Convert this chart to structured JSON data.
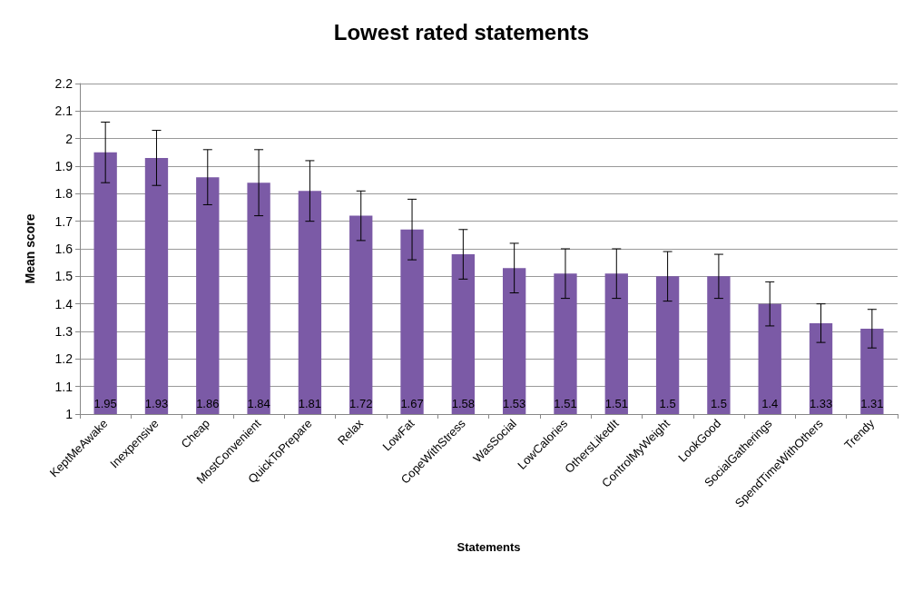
{
  "chart_data": {
    "type": "bar",
    "title": "Lowest rated statements",
    "xlabel": "Statements",
    "ylabel": "Mean score",
    "categories": [
      "KeptMeAwake",
      "Inexpensive",
      "Cheap",
      "MostConvenient",
      "QuickToPrepare",
      "Relax",
      "LowFat",
      "CopeWithStress",
      "WasSocial",
      "LowCalories",
      "OthersLikedIt",
      "ControlMyWeight",
      "LookGood",
      "SocialGatherings",
      "SpendTimeWithOthers",
      "Trendy"
    ],
    "values": [
      1.95,
      1.93,
      1.86,
      1.84,
      1.81,
      1.72,
      1.67,
      1.58,
      1.53,
      1.51,
      1.51,
      1.5,
      1.5,
      1.4,
      1.33,
      1.31
    ],
    "errors": [
      0.11,
      0.1,
      0.1,
      0.12,
      0.11,
      0.09,
      0.11,
      0.09,
      0.09,
      0.09,
      0.09,
      0.09,
      0.08,
      0.08,
      0.07,
      0.07
    ],
    "color": "#7b5aa6",
    "data_labels": true,
    "grid": "y",
    "ylim": [
      1,
      2.2
    ],
    "yticks": [
      1,
      1.1,
      1.2,
      1.3,
      1.4,
      1.5,
      1.6,
      1.7,
      1.8,
      1.9,
      2,
      2.1,
      2.2
    ]
  }
}
